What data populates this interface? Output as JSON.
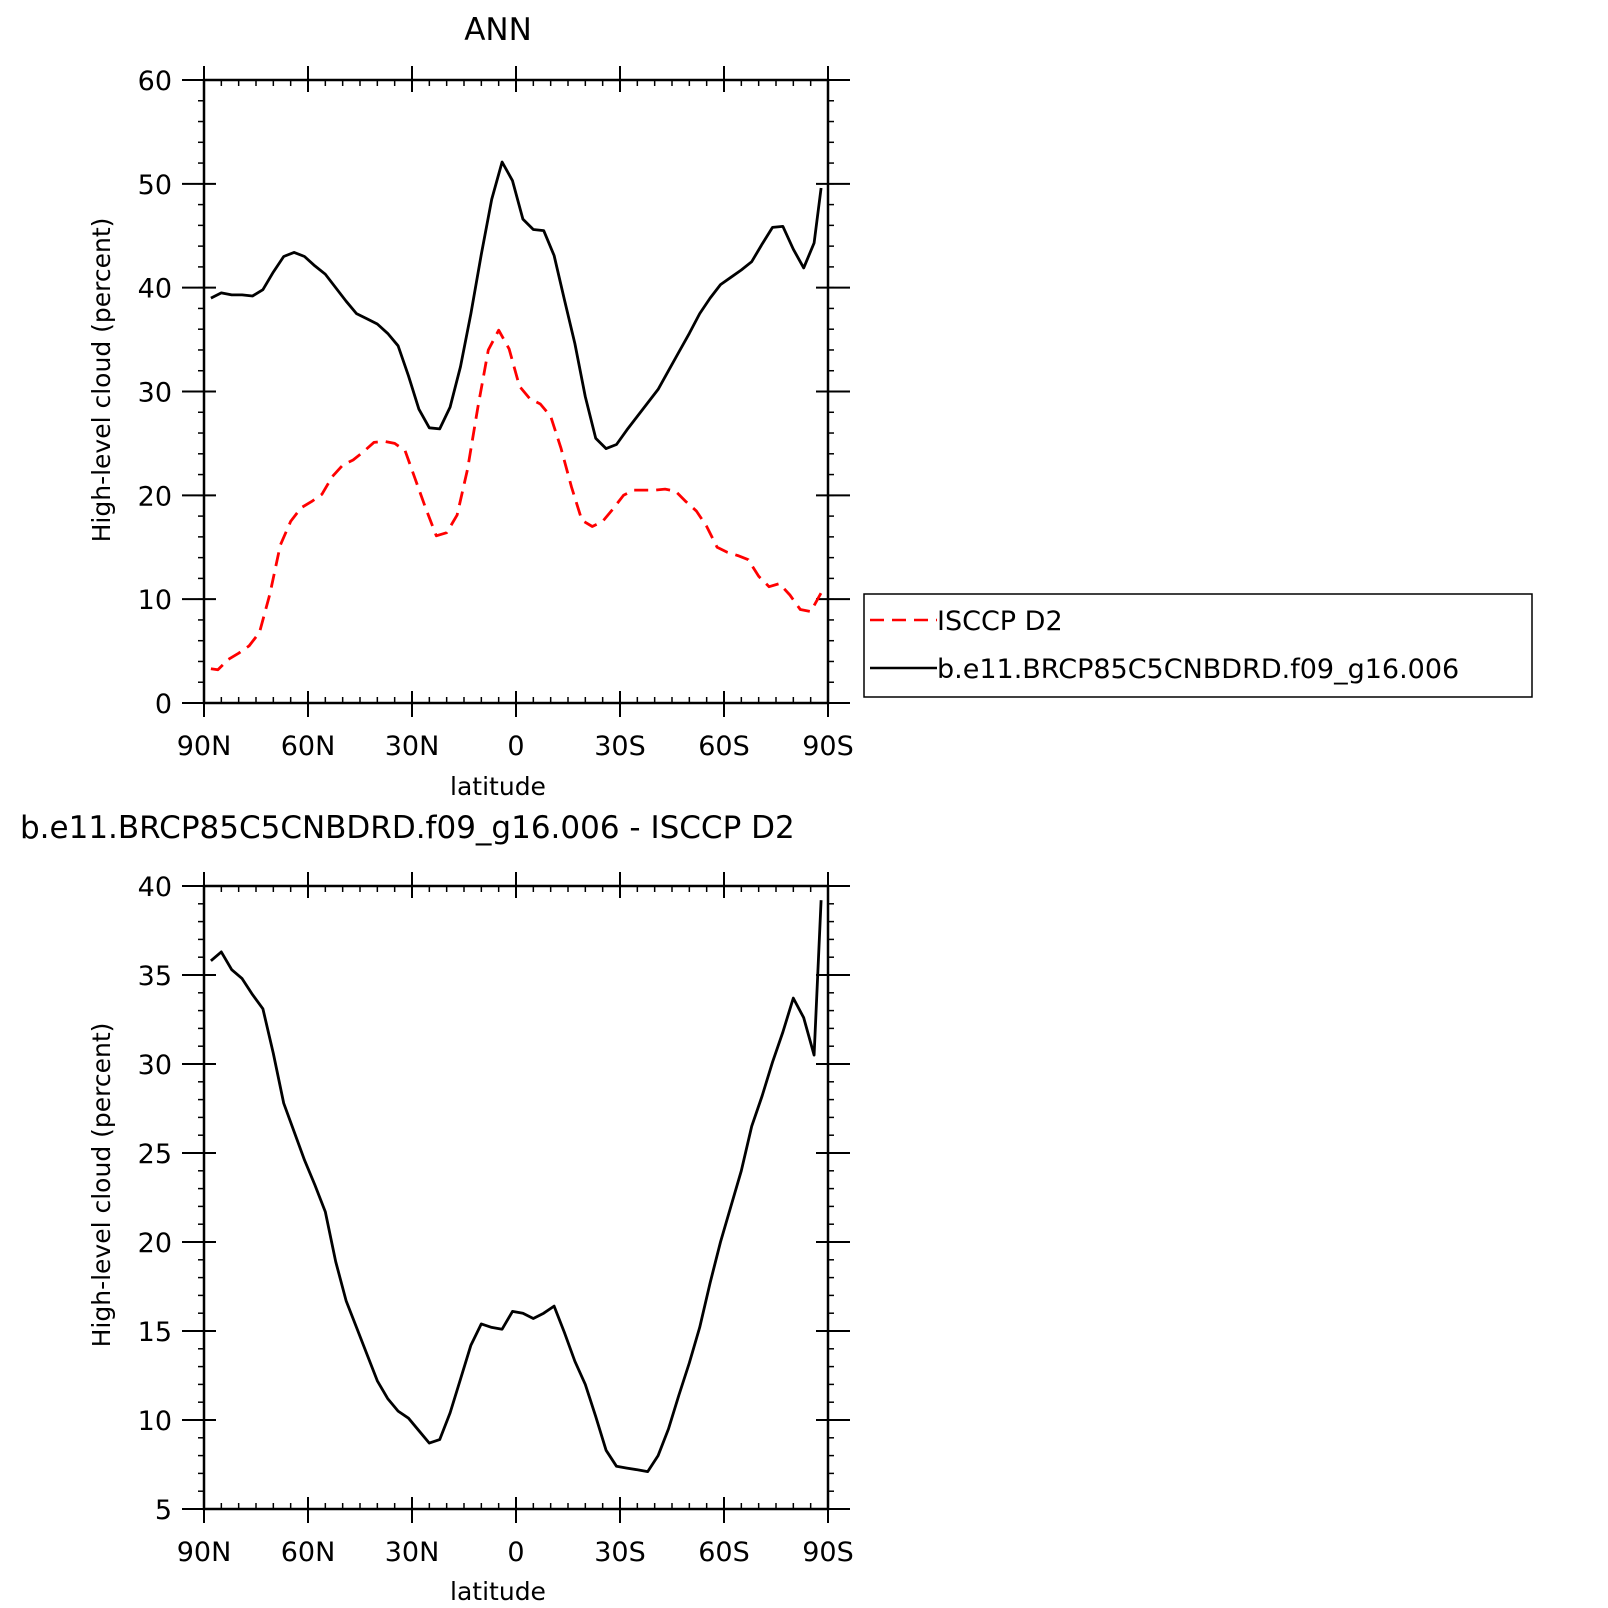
{
  "chart_data": [
    {
      "type": "line",
      "title": "ANN",
      "xlabel": "latitude",
      "ylabel": "High-level cloud (percent)",
      "xlim": [
        -90,
        90
      ],
      "ylim": [
        0,
        60
      ],
      "x_ticks": [
        -90,
        -60,
        -30,
        0,
        30,
        60,
        90
      ],
      "x_tick_labels": [
        "90N",
        "60N",
        "30N",
        "0",
        "30S",
        "60S",
        "90S"
      ],
      "y_ticks": [
        0,
        10,
        20,
        30,
        40,
        50,
        60
      ],
      "y_tick_labels": [
        "0",
        "10",
        "20",
        "30",
        "40",
        "50",
        "60"
      ],
      "legend_position": "right",
      "series": [
        {
          "name": "ISCCP D2",
          "color": "#ff0000",
          "dash": "dashed",
          "x": [
            -88,
            -86,
            -83,
            -80,
            -77,
            -74,
            -71,
            -68,
            -65,
            -62,
            -59,
            -56,
            -53,
            -50,
            -47,
            -44,
            -41,
            -38,
            -35,
            -32,
            -29,
            -26,
            -23,
            -20,
            -17,
            -14,
            -11,
            -8,
            -5,
            -2,
            1,
            4,
            7,
            10,
            13,
            16,
            19,
            22,
            25,
            28,
            31,
            34,
            37,
            40,
            43,
            46,
            49,
            52,
            55,
            58,
            61,
            64,
            67,
            70,
            73,
            76,
            79,
            82,
            85,
            88
          ],
          "y": [
            3.3,
            3.2,
            4.2,
            4.8,
            5.5,
            6.8,
            10.5,
            15.2,
            17.5,
            18.8,
            19.4,
            20.1,
            21.8,
            22.9,
            23.4,
            24.2,
            25.1,
            25.2,
            25.0,
            24.3,
            21.5,
            18.7,
            16.1,
            16.4,
            18.1,
            22.5,
            28.5,
            34.0,
            35.9,
            34.1,
            30.5,
            29.3,
            28.8,
            27.6,
            24.5,
            20.8,
            17.6,
            17.0,
            17.5,
            18.7,
            20.0,
            20.5,
            20.5,
            20.5,
            20.6,
            20.4,
            19.4,
            18.5,
            17.0,
            15.0,
            14.5,
            14.2,
            13.8,
            12.2,
            11.2,
            11.5,
            10.4,
            9.0,
            8.8,
            10.6
          ]
        },
        {
          "name": "b.e11.BRCP85C5CNBDRD.f09_g16.006",
          "color": "#000000",
          "dash": "solid",
          "x": [
            -88,
            -85,
            -82,
            -79,
            -76,
            -73,
            -70,
            -67,
            -64,
            -61,
            -58,
            -55,
            -52,
            -49,
            -46,
            -43,
            -40,
            -37,
            -34,
            -31,
            -28,
            -25,
            -22,
            -19,
            -16,
            -13,
            -10,
            -7,
            -4,
            -1,
            2,
            5,
            8,
            11,
            14,
            17,
            20,
            23,
            26,
            29,
            32,
            35,
            38,
            41,
            44,
            47,
            50,
            53,
            56,
            59,
            62,
            65,
            68,
            71,
            74,
            77,
            80,
            83,
            86,
            88
          ],
          "y": [
            39.0,
            39.5,
            39.3,
            39.3,
            39.2,
            39.8,
            41.5,
            43.0,
            43.4,
            43.0,
            42.1,
            41.3,
            40.0,
            38.7,
            37.5,
            37.0,
            36.5,
            35.6,
            34.4,
            31.5,
            28.3,
            26.5,
            26.4,
            28.5,
            32.4,
            37.5,
            43.2,
            48.5,
            52.1,
            50.3,
            46.6,
            45.6,
            45.5,
            43.1,
            38.8,
            34.6,
            29.5,
            25.5,
            24.5,
            24.9,
            26.3,
            27.6,
            28.9,
            30.2,
            32.0,
            33.8,
            35.6,
            37.5,
            39.0,
            40.3,
            41.0,
            41.7,
            42.5,
            44.2,
            45.8,
            45.9,
            43.7,
            41.9,
            44.3,
            49.6
          ]
        }
      ]
    },
    {
      "type": "line",
      "title": "b.e11.BRCP85C5CNBDRD.f09_g16.006 - ISCCP D2",
      "xlabel": "latitude",
      "ylabel": "High-level cloud (percent)",
      "xlim": [
        -90,
        90
      ],
      "ylim": [
        5,
        40
      ],
      "x_ticks": [
        -90,
        -60,
        -30,
        0,
        30,
        60,
        90
      ],
      "x_tick_labels": [
        "90N",
        "60N",
        "30N",
        "0",
        "30S",
        "60S",
        "90S"
      ],
      "y_ticks": [
        5,
        10,
        15,
        20,
        25,
        30,
        35,
        40
      ],
      "y_tick_labels": [
        "5",
        "10",
        "15",
        "20",
        "25",
        "30",
        "35",
        "40"
      ],
      "series": [
        {
          "color": "#000000",
          "dash": "solid",
          "x": [
            -88,
            -85,
            -82,
            -79,
            -76,
            -73,
            -70,
            -67,
            -64,
            -61,
            -58,
            -55,
            -52,
            -49,
            -46,
            -43,
            -40,
            -37,
            -34,
            -31,
            -28,
            -25,
            -22,
            -19,
            -16,
            -13,
            -10,
            -7,
            -4,
            -1,
            2,
            5,
            8,
            11,
            14,
            17,
            20,
            23,
            26,
            29,
            32,
            35,
            38,
            41,
            44,
            47,
            50,
            53,
            56,
            59,
            62,
            65,
            68,
            71,
            74,
            77,
            80,
            83,
            86,
            88
          ],
          "y": [
            35.8,
            36.3,
            35.3,
            34.8,
            33.9,
            33.1,
            30.6,
            27.8,
            26.2,
            24.6,
            23.2,
            21.7,
            18.9,
            16.7,
            15.2,
            13.7,
            12.2,
            11.2,
            10.5,
            10.1,
            9.4,
            8.7,
            8.9,
            10.4,
            12.3,
            14.2,
            15.4,
            15.2,
            15.1,
            16.1,
            16.0,
            15.7,
            16.0,
            16.4,
            14.9,
            13.3,
            12.0,
            10.2,
            8.3,
            7.4,
            7.3,
            7.2,
            7.1,
            8.0,
            9.5,
            11.4,
            13.2,
            15.2,
            17.7,
            20.0,
            22.0,
            24.0,
            26.5,
            28.2,
            30.1,
            31.8,
            33.7,
            32.6,
            30.5,
            39.2
          ]
        }
      ]
    }
  ]
}
